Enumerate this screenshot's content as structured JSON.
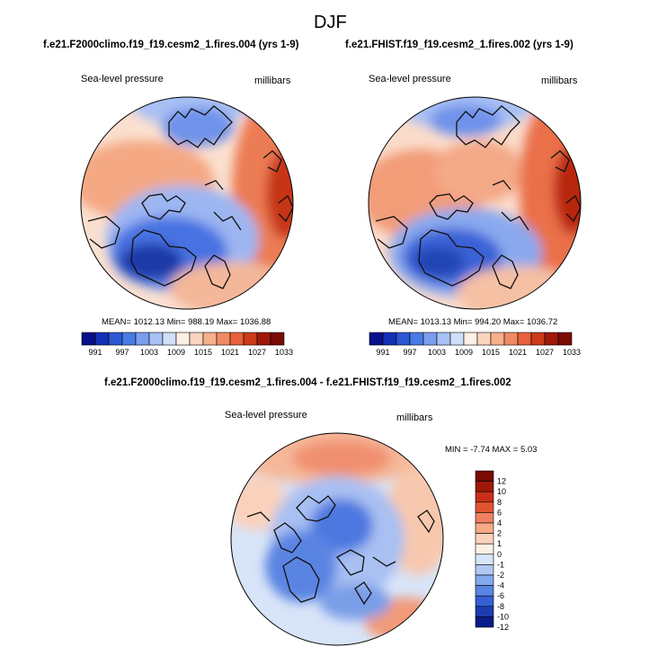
{
  "title": "DJF",
  "chart_data": [
    {
      "type": "contour-map",
      "title": "f.e21.F2000climo.f19_f19.cesm2_1.fires.004 (yrs 1-9)",
      "variable": "Sea-level pressure",
      "units": "millibars",
      "stats": "MEAN= 1012.13  Min= 988.19  Max= 1036.88",
      "mean": 1012.13,
      "min": 988.19,
      "max": 1036.88,
      "levels": [
        "991",
        "997",
        "1003",
        "1009",
        "1015",
        "1021",
        "1027",
        "1033"
      ]
    },
    {
      "type": "contour-map",
      "title": "f.e21.FHIST.f19_f19.cesm2_1.fires.002 (yrs 1-9)",
      "variable": "Sea-level pressure",
      "units": "millibars",
      "stats": "MEAN= 1013.13  Min= 994.20  Max= 1036.72",
      "mean": 1013.13,
      "min": 994.2,
      "max": 1036.72,
      "levels": [
        "991",
        "997",
        "1003",
        "1009",
        "1015",
        "1021",
        "1027",
        "1033"
      ]
    },
    {
      "type": "contour-map",
      "title": "f.e21.F2000climo.f19_f19.cesm2_1.fires.004 - f.e21.FHIST.f19_f19.cesm2_1.fires.002",
      "variable": "Sea-level pressure",
      "units": "millibars",
      "stats": "MIN =  -7.74  MAX =   5.03",
      "min": -7.74,
      "max": 5.03,
      "levels": [
        "12",
        "10",
        "8",
        "6",
        "4",
        "2",
        "1",
        "0",
        "-1",
        "-2",
        "-4",
        "-6",
        "-8",
        "-10",
        "-12"
      ]
    }
  ],
  "palette": {
    "horizontal": [
      "#08108a",
      "#1430b4",
      "#2c58d4",
      "#4a7ae6",
      "#7a9ef0",
      "#a8c0f4",
      "#d0dff8",
      "#fcf0e6",
      "#fad4bc",
      "#f6b08c",
      "#f08a64",
      "#e8603c",
      "#cc3a1a",
      "#a01808",
      "#780c04"
    ],
    "diff": [
      "#7a0a04",
      "#a01808",
      "#c8301a",
      "#e05530",
      "#f08060",
      "#f6aa88",
      "#fad2bc",
      "#fcefe6",
      "#d8e4f8",
      "#b0c8f2",
      "#84a8ec",
      "#5a84e2",
      "#3460d4",
      "#1c3cb0",
      "#0a1c88"
    ]
  }
}
